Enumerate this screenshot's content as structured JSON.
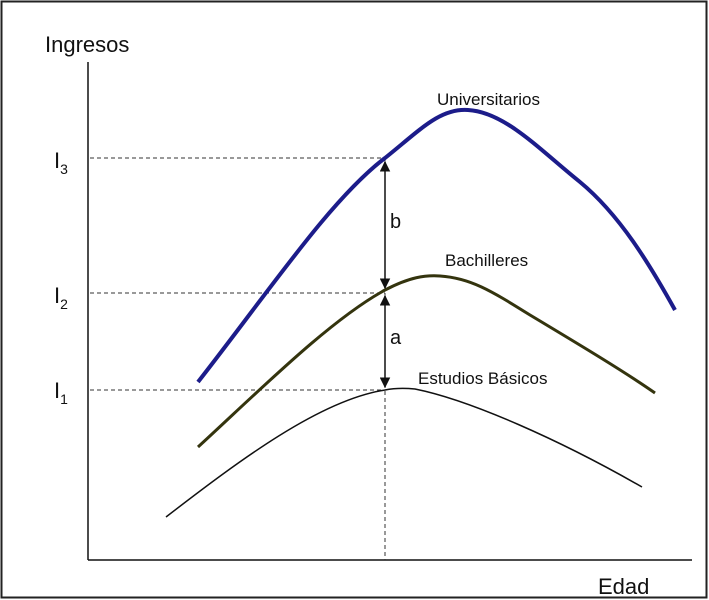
{
  "axes": {
    "y_label": "Ingresos",
    "x_label": "Edad"
  },
  "levels": [
    {
      "base": "I",
      "sub": "3"
    },
    {
      "base": "I",
      "sub": "2"
    },
    {
      "base": "I",
      "sub": "1"
    }
  ],
  "curves": [
    {
      "label": "Universitarios"
    },
    {
      "label": "Bachilleres"
    },
    {
      "label": "Estudios Básicos"
    }
  ],
  "gaps": [
    {
      "label": "b"
    },
    {
      "label": "a"
    }
  ]
}
